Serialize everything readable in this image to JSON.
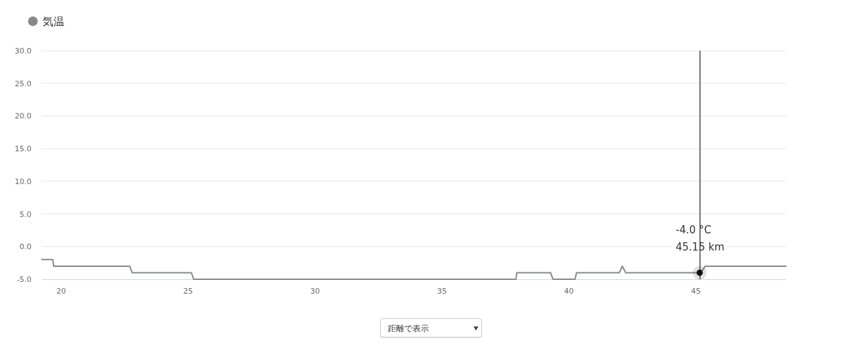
{
  "chart_data": {
    "type": "line",
    "x": [
      19.24,
      19.67,
      19.71,
      22.7,
      22.8,
      25.13,
      25.22,
      37.91,
      37.95,
      39.28,
      39.37,
      40.24,
      40.3,
      41.99,
      42.1,
      42.24,
      45.15,
      45.19,
      45.37,
      48.55
    ],
    "series": [
      {
        "name": "気温",
        "color": "#888888",
        "values": [
          -2,
          -2,
          -3,
          -3,
          -4,
          -4,
          -5,
          -5,
          -4,
          -4,
          -5,
          -5,
          -4,
          -4,
          -3,
          -4,
          -4,
          -4,
          -3,
          -3
        ]
      }
    ],
    "xlim": [
      19.24,
      48.55
    ],
    "xticks": [
      20,
      25,
      30,
      35,
      40,
      45
    ],
    "ylim": [
      -5,
      30
    ],
    "yticks": [
      {
        "value": -5,
        "label": "-5.0"
      },
      {
        "value": 0,
        "label": "0.0"
      },
      {
        "value": 5,
        "label": "5.0"
      },
      {
        "value": 10,
        "label": "10.0"
      },
      {
        "value": 15,
        "label": "15.0"
      },
      {
        "value": 20,
        "label": "20.0"
      },
      {
        "value": 25,
        "label": "25.0"
      },
      {
        "value": 30,
        "label": "30.0"
      }
    ],
    "grid": "y",
    "legend": "top left",
    "marker": "none",
    "line_style": "solid",
    "ref_lines": [
      {
        "axis": "x",
        "value": 45.15,
        "color": "#000000"
      }
    ],
    "annotations": [
      {
        "text": "-4.0 °C\n45.15 km",
        "x": 45.15,
        "y": -4.0
      },
      "距離で表示"
    ]
  }
}
